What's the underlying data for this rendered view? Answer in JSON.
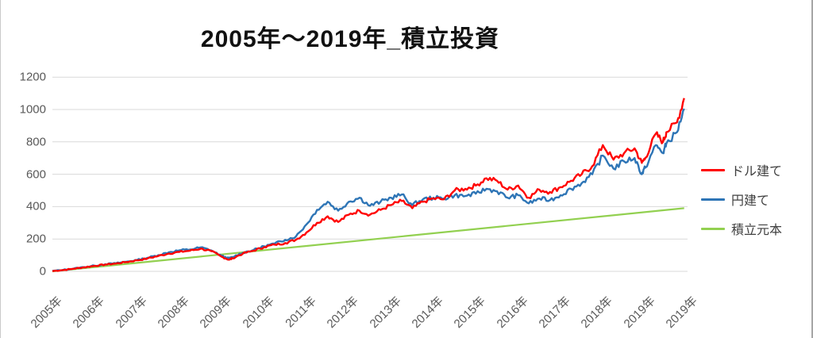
{
  "window": {
    "background": "#ffffff",
    "border_right_color": "#a6a6a6",
    "border_left_color": "#c9c9c9"
  },
  "chart_data": {
    "type": "line",
    "title": "2005年～2019年_積立投資",
    "xlabel": "",
    "ylabel": "",
    "ylim": [
      0,
      1200
    ],
    "y_tick_interval": 200,
    "y_tick_labels": [
      "0",
      "200",
      "400",
      "600",
      "800",
      "1000",
      "1200"
    ],
    "x_tick_labels": [
      "2005年",
      "2006年",
      "2007年",
      "2008年",
      "2009年",
      "2010年",
      "2011年",
      "2012年",
      "2013年",
      "2014年",
      "2015年",
      "2016年",
      "2017年",
      "2018年",
      "2019年",
      "2019年"
    ],
    "x_range_years": [
      2005.0,
      2020.0
    ],
    "grid": true,
    "legend_position": "right",
    "colors": {
      "title": "#111111",
      "axis_labels": "#595959",
      "gridlines": "#d9d9d9",
      "legend_text": "#3f3f3f"
    },
    "x": [
      2005.0,
      2005.25,
      2005.5,
      2005.75,
      2006.0,
      2006.25,
      2006.5,
      2006.75,
      2007.0,
      2007.25,
      2007.5,
      2007.75,
      2008.0,
      2008.25,
      2008.5,
      2008.75,
      2009.0,
      2009.17,
      2009.25,
      2009.5,
      2009.75,
      2010.0,
      2010.25,
      2010.5,
      2010.75,
      2011.0,
      2011.25,
      2011.5,
      2011.75,
      2012.0,
      2012.25,
      2012.5,
      2012.75,
      2013.0,
      2013.25,
      2013.5,
      2013.75,
      2014.0,
      2014.25,
      2014.5,
      2014.75,
      2015.0,
      2015.25,
      2015.5,
      2015.75,
      2016.0,
      2016.25,
      2016.5,
      2016.75,
      2017.0,
      2017.25,
      2017.5,
      2017.75,
      2018.0,
      2018.25,
      2018.5,
      2018.75,
      2018.92,
      2019.0,
      2019.25,
      2019.42,
      2019.5,
      2019.75,
      2019.92
    ],
    "series": [
      {
        "name": "ドル建て",
        "id": "usd",
        "color": "#ff0000",
        "noisy": true,
        "values": [
          2,
          8,
          16,
          25,
          34,
          42,
          48,
          58,
          68,
          80,
          95,
          110,
          120,
          128,
          140,
          125,
          90,
          72,
          80,
          110,
          128,
          150,
          165,
          175,
          195,
          240,
          300,
          340,
          305,
          350,
          375,
          350,
          380,
          410,
          435,
          390,
          430,
          450,
          445,
          500,
          510,
          530,
          575,
          560,
          505,
          530,
          455,
          505,
          490,
          520,
          560,
          600,
          650,
          780,
          690,
          730,
          760,
          670,
          700,
          850,
          800,
          860,
          920,
          1070
        ]
      },
      {
        "name": "円建て",
        "id": "jpy",
        "color": "#2e75b6",
        "noisy": true,
        "values": [
          2,
          9,
          17,
          26,
          35,
          44,
          50,
          60,
          70,
          84,
          100,
          118,
          130,
          135,
          148,
          130,
          95,
          80,
          88,
          115,
          132,
          155,
          172,
          195,
          215,
          290,
          380,
          430,
          375,
          430,
          455,
          405,
          430,
          455,
          475,
          410,
          445,
          455,
          450,
          470,
          465,
          480,
          510,
          495,
          455,
          470,
          420,
          450,
          440,
          470,
          510,
          545,
          600,
          715,
          635,
          680,
          700,
          600,
          640,
          780,
          730,
          790,
          860,
          1005
        ]
      },
      {
        "name": "積立元本",
        "id": "principal",
        "color": "#92d050",
        "noisy": false,
        "x_override": [
          2005.0,
          2019.92
        ],
        "values_override": [
          0,
          390
        ]
      }
    ]
  }
}
